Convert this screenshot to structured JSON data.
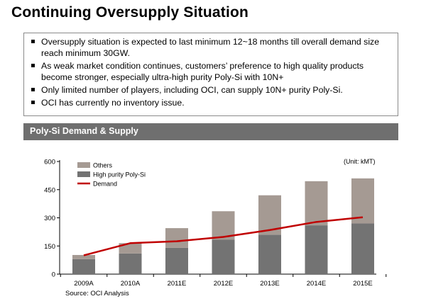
{
  "header": {
    "title": "Continuing Oversupply Situation"
  },
  "bullets": [
    {
      "text": "Oversupply situation is expected to last minimum 12~18 months till overall demand size reach minimum 30GW."
    },
    {
      "text": "As weak market condition continues, customers’ preference to high quality products become stronger, especially ultra-high purity Poly-Si with 10N+"
    },
    {
      "text": "Only limited number of players, including OCI, can supply 10N+ purity Poly-Si."
    },
    {
      "text": "OCI  has currently no inventory issue."
    }
  ],
  "section": {
    "title": "Poly-Si Demand & Supply"
  },
  "unit": "(Unit: kMT)",
  "source": "Source: OCI Analysis",
  "colors": {
    "others": "#a59a93",
    "high_purity": "#737373",
    "demand": "#c00000",
    "section_bar": "#6f6f6f"
  },
  "chart_data": {
    "type": "bar",
    "stacked": true,
    "categories": [
      "2009A",
      "2010A",
      "2011E",
      "2012E",
      "2013E",
      "2014E",
      "2015E"
    ],
    "series": [
      {
        "name": "High purity Poly-Si",
        "kind": "bar",
        "values": [
          80,
          110,
          140,
          183,
          210,
          260,
          270
        ]
      },
      {
        "name": "Others",
        "kind": "bar",
        "values": [
          22,
          55,
          105,
          152,
          210,
          235,
          240
        ]
      },
      {
        "name": "Demand",
        "kind": "line",
        "values": [
          100,
          165,
          175,
          198,
          235,
          278,
          303
        ]
      }
    ],
    "ylim": [
      0,
      600
    ],
    "yticks": [
      0,
      150,
      300,
      450,
      600
    ],
    "unit": "(Unit: kMT)",
    "legend": "top-left",
    "grid": false
  }
}
